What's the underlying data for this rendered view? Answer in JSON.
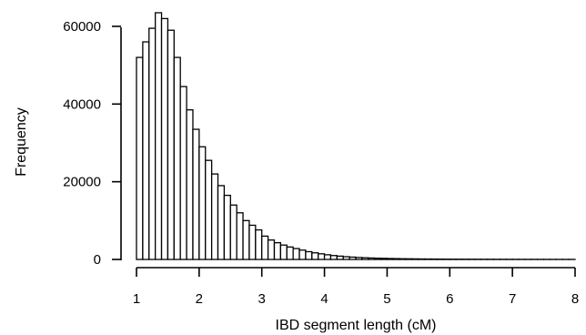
{
  "chart_data": {
    "type": "bar",
    "title": "",
    "xlabel": "IBD segment length (cM)",
    "ylabel": "Frequency",
    "xlim": [
      1,
      8
    ],
    "ylim": [
      0,
      63500
    ],
    "bin_width": 0.1,
    "x_ticks": [
      1,
      2,
      3,
      4,
      5,
      6,
      7,
      8
    ],
    "y_ticks": [
      0,
      20000,
      40000,
      60000
    ],
    "x_tick_labels": [
      "1",
      "2",
      "3",
      "4",
      "5",
      "6",
      "7",
      "8"
    ],
    "y_tick_labels": [
      "0",
      "20000",
      "40000",
      "60000"
    ],
    "grid": false,
    "legend": "none",
    "colors": {
      "bar_fill": "#ffffff",
      "bar_stroke": "#000000"
    },
    "categories": [
      "1.0-1.1",
      "1.1-1.2",
      "1.2-1.3",
      "1.3-1.4",
      "1.4-1.5",
      "1.5-1.6",
      "1.6-1.7",
      "1.7-1.8",
      "1.8-1.9",
      "1.9-2.0",
      "2.0-2.1",
      "2.1-2.2",
      "2.2-2.3",
      "2.3-2.4",
      "2.4-2.5",
      "2.5-2.6",
      "2.6-2.7",
      "2.7-2.8",
      "2.8-2.9",
      "2.9-3.0",
      "3.0-3.1",
      "3.1-3.2",
      "3.2-3.3",
      "3.3-3.4",
      "3.4-3.5",
      "3.5-3.6",
      "3.6-3.7",
      "3.7-3.8",
      "3.8-3.9",
      "3.9-4.0",
      "4.0-4.1",
      "4.1-4.2",
      "4.2-4.3",
      "4.3-4.4",
      "4.4-4.5",
      "4.5-4.6",
      "4.6-4.7",
      "4.7-4.8",
      "4.8-4.9",
      "4.9-5.0",
      "5.0-5.1",
      "5.1-5.2",
      "5.2-5.3",
      "5.3-5.4",
      "5.4-5.5",
      "5.5-5.6",
      "5.6-5.7",
      "5.7-5.8",
      "5.8-5.9",
      "5.9-6.0",
      "6.0-6.1",
      "6.1-6.2",
      "6.2-6.3",
      "6.3-6.4",
      "6.4-6.5",
      "6.5-6.6",
      "6.6-6.7",
      "6.7-6.8",
      "6.8-6.9",
      "6.9-7.0",
      "7.0-7.1",
      "7.1-7.2",
      "7.2-7.3",
      "7.3-7.4",
      "7.4-7.5",
      "7.5-7.6",
      "7.6-7.7",
      "7.7-7.8",
      "7.8-7.9",
      "7.9-8.0"
    ],
    "values": [
      52000,
      56000,
      59500,
      63500,
      62000,
      59000,
      52000,
      44500,
      38500,
      33500,
      29000,
      25500,
      22000,
      19000,
      16500,
      14000,
      12000,
      10000,
      8800,
      7600,
      6000,
      5000,
      4300,
      3700,
      3200,
      2800,
      2400,
      2000,
      1700,
      1450,
      1200,
      1000,
      850,
      700,
      600,
      500,
      430,
      370,
      320,
      280,
      240,
      210,
      180,
      160,
      140,
      120,
      110,
      100,
      90,
      80,
      70,
      65,
      60,
      55,
      50,
      45,
      42,
      40,
      38,
      35,
      32,
      30,
      28,
      26,
      24,
      22,
      20,
      18,
      16,
      14
    ]
  }
}
